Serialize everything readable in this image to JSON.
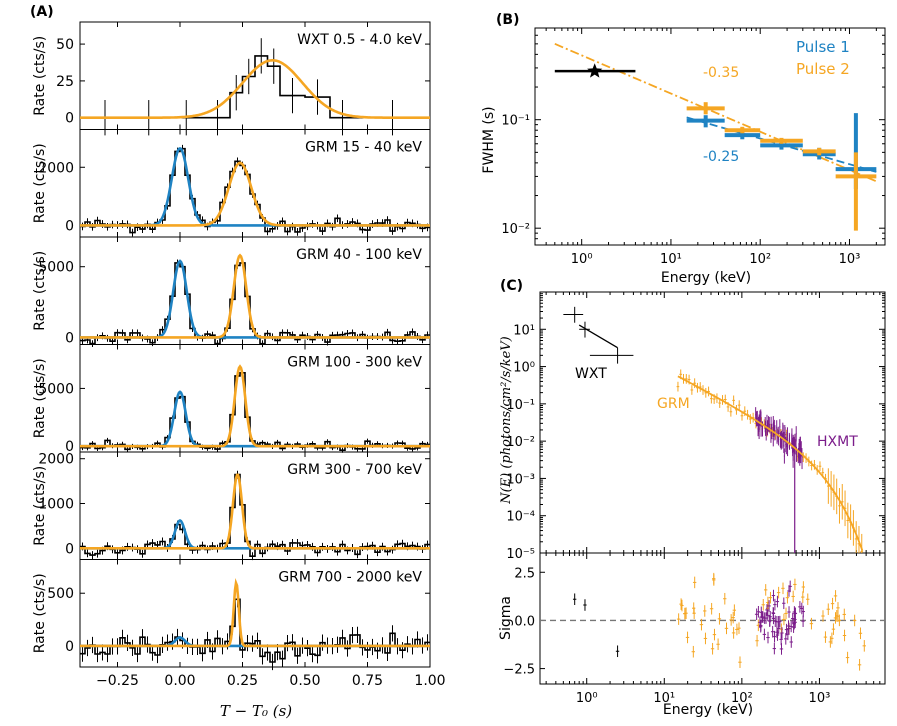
{
  "colors": {
    "orange": "#F5A623",
    "blue": "#1F83C3",
    "purple": "#7B1C8A",
    "black": "#000000",
    "gray": "#777777"
  },
  "chart_data": [
    {
      "type": "line",
      "id": "A",
      "panel_label": "(A)",
      "xlabel": "T − T₀ (s)",
      "xlim": [
        -0.4,
        1.0
      ],
      "x_ticks": [
        -0.25,
        0.0,
        0.25,
        0.5,
        0.75,
        1.0
      ],
      "x_tick_labels": [
        "−0.25",
        "0.00",
        "0.25",
        "0.50",
        "0.75",
        "1.00"
      ],
      "ylabel": "Rate (cts/s)",
      "subpanels": [
        {
          "label": "WXT 0.5 - 4.0 keV",
          "ylim": [
            -8,
            65
          ],
          "yticks": [
            0,
            25,
            50
          ],
          "gaussians": [
            {
              "color": "orange",
              "amp": 39,
              "mu": 0.37,
              "sigma": 0.12
            }
          ],
          "hist": {
            "edges": [
              -0.4,
              -0.2,
              -0.05,
              0.1,
              0.2,
              0.25,
              0.3,
              0.35,
              0.4,
              0.5,
              0.6,
              0.7,
              1.0
            ],
            "values": [
              0,
              0,
              0,
              0,
              17,
              28,
              42,
              35,
              15,
              14,
              0,
              0
            ]
          }
        },
        {
          "label": "GRM 15 - 40 keV",
          "ylim": [
            -400,
            3300
          ],
          "yticks": [
            0,
            2000
          ],
          "gaussians": [
            {
              "color": "blue",
              "amp": 2650,
              "mu": 0.0,
              "sigma": 0.033
            },
            {
              "color": "orange",
              "amp": 2150,
              "mu": 0.24,
              "sigma": 0.045
            }
          ],
          "noise": 120
        },
        {
          "label": "GRM 40 - 100 keV",
          "ylim": [
            -500,
            7100
          ],
          "yticks": [
            0,
            5000
          ],
          "gaussians": [
            {
              "color": "blue",
              "amp": 5400,
              "mu": 0.0,
              "sigma": 0.027
            },
            {
              "color": "orange",
              "amp": 5800,
              "mu": 0.24,
              "sigma": 0.025
            }
          ],
          "noise": 220
        },
        {
          "label": "GRM 100 - 300 keV",
          "ylim": [
            -500,
            8800
          ],
          "yticks": [
            0,
            5000
          ],
          "gaussians": [
            {
              "color": "blue",
              "amp": 4700,
              "mu": 0.0,
              "sigma": 0.023
            },
            {
              "color": "orange",
              "amp": 6900,
              "mu": 0.24,
              "sigma": 0.021
            }
          ],
          "noise": 200
        },
        {
          "label": "GRM 300 - 700 keV",
          "ylim": [
            -250,
            2150
          ],
          "yticks": [
            0,
            1000,
            2000
          ],
          "gaussians": [
            {
              "color": "blue",
              "amp": 620,
              "mu": 0.0,
              "sigma": 0.02
            },
            {
              "color": "orange",
              "amp": 1650,
              "mu": 0.23,
              "sigma": 0.018
            }
          ],
          "noise": 80
        },
        {
          "label": "GRM 700 - 2000 keV",
          "ylim": [
            -200,
            820
          ],
          "yticks": [
            0,
            500
          ],
          "gaussians": [
            {
              "color": "blue",
              "amp": 80,
              "mu": 0.0,
              "sigma": 0.02
            },
            {
              "color": "orange",
              "amp": 600,
              "mu": 0.225,
              "sigma": 0.01
            }
          ],
          "noise": 70
        }
      ]
    },
    {
      "type": "scatter",
      "id": "B",
      "panel_label": "(B)",
      "xlabel": "Energy (keV)",
      "ylabel": "FWHM (s)",
      "xscale": "log",
      "yscale": "log",
      "xlim": [
        0.3,
        2500
      ],
      "ylim": [
        0.007,
        0.7
      ],
      "x_ticks": [
        1,
        10,
        100,
        1000
      ],
      "x_tick_labels": [
        "10⁰",
        "10¹",
        "10²",
        "10³"
      ],
      "y_ticks": [
        0.01,
        0.1
      ],
      "y_tick_labels": [
        "10⁻²",
        "10⁻¹"
      ],
      "legend": [
        "Pulse 1",
        "Pulse 2"
      ],
      "annotations": [
        "-0.35",
        "-0.25"
      ],
      "wxt_point": {
        "x": 1.4,
        "y": 0.28,
        "xerr": [
          0.5,
          4.0
        ],
        "marker": "star"
      },
      "series": [
        {
          "name": "Pulse 1",
          "color": "blue",
          "points": [
            {
              "x": 24.5,
              "y": 0.098,
              "xr": [
                15,
                40
              ],
              "yr": [
                0.085,
                0.11
              ]
            },
            {
              "x": 63,
              "y": 0.072,
              "xr": [
                40,
                100
              ],
              "yr": [
                0.066,
                0.078
              ]
            },
            {
              "x": 173,
              "y": 0.058,
              "xr": [
                100,
                300
              ],
              "yr": [
                0.053,
                0.063
              ]
            },
            {
              "x": 458,
              "y": 0.048,
              "xr": [
                300,
                700
              ],
              "yr": [
                0.043,
                0.055
              ]
            },
            {
              "x": 1180,
              "y": 0.035,
              "xr": [
                700,
                2000
              ],
              "yr": [
                0.023,
                0.115
              ]
            }
          ],
          "fit": {
            "x": [
              15,
              2000
            ],
            "y": [
              0.105,
              0.033
            ],
            "dash": "dashed"
          }
        },
        {
          "name": "Pulse 2",
          "color": "orange",
          "points": [
            {
              "x": 24.5,
              "y": 0.127,
              "xr": [
                15,
                40
              ],
              "yr": [
                0.112,
                0.145
              ]
            },
            {
              "x": 63,
              "y": 0.08,
              "xr": [
                40,
                100
              ],
              "yr": [
                0.075,
                0.086
              ]
            },
            {
              "x": 173,
              "y": 0.064,
              "xr": [
                100,
                300
              ],
              "yr": [
                0.06,
                0.068
              ]
            },
            {
              "x": 458,
              "y": 0.051,
              "xr": [
                300,
                700
              ],
              "yr": [
                0.047,
                0.055
              ]
            },
            {
              "x": 1180,
              "y": 0.03,
              "xr": [
                700,
                2000
              ],
              "yr": [
                0.0095,
                0.05
              ]
            }
          ],
          "fit": {
            "x": [
              0.5,
              2000
            ],
            "y": [
              0.5,
              0.027
            ],
            "dash": "dashdot"
          }
        }
      ]
    },
    {
      "type": "scatter",
      "id": "C",
      "panel_label": "(C)",
      "xlabel": "Energy (keV)",
      "ylabel": "N(E) (photons/cm²/s/keV)",
      "resid_ylabel": "Sigma",
      "xscale": "log",
      "yscale": "log",
      "xlim": [
        0.25,
        7000
      ],
      "ylim": [
        1e-05,
        100
      ],
      "x_ticks": [
        1,
        10,
        100,
        1000
      ],
      "x_tick_labels": [
        "10⁰",
        "10¹",
        "10²",
        "10³"
      ],
      "y_ticks": [
        1e-05,
        0.0001,
        0.001,
        0.01,
        0.1,
        1,
        10
      ],
      "y_tick_labels": [
        "10⁻⁵",
        "10⁻⁴",
        "10⁻³",
        "10⁻²",
        "10⁻¹",
        "10⁰",
        "10¹"
      ],
      "resid_ylim": [
        -3.3,
        3.5
      ],
      "resid_ticks": [
        2.5,
        0.0,
        -2.5
      ],
      "resid_tick_labels": [
        "2.5",
        "0.0",
        "−2.5"
      ],
      "labels": {
        "wxt": "WXT",
        "grm": "GRM",
        "hxmt": "HXMT"
      },
      "wxt_points": [
        {
          "x": 0.7,
          "y": 25,
          "xr": [
            0.5,
            0.9
          ],
          "yr": [
            15,
            40
          ]
        },
        {
          "x": 0.95,
          "y": 10,
          "xr": [
            0.8,
            1.1
          ],
          "yr": [
            6,
            16
          ]
        },
        {
          "x": 2.5,
          "y": 2.0,
          "xr": [
            1.1,
            4.0
          ],
          "yr": [
            1.2,
            3.2
          ]
        }
      ],
      "wxt_model": {
        "x": [
          0.8,
          2.5
        ],
        "y": [
          13,
          3.2
        ]
      },
      "grm_model": {
        "E0": 15,
        "N0": 0.55,
        "index": -1.1,
        "Ec": 750
      },
      "hxmt_range": [
        150,
        620
      ],
      "grm_range": [
        15,
        4500
      ]
    }
  ]
}
